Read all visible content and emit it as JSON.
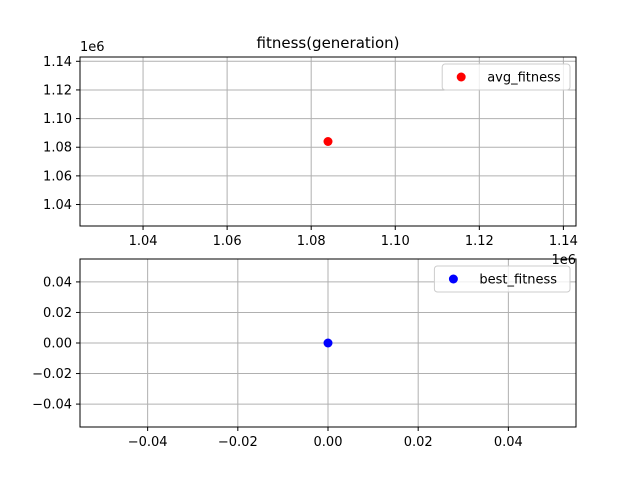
{
  "chart_data": [
    {
      "type": "scatter",
      "title": "fitness(generation)",
      "xlabel": "",
      "ylabel": "",
      "xlim": [
        1025000,
        1143000
      ],
      "ylim": [
        1025000,
        1143000
      ],
      "xticks": [
        1040000,
        1060000,
        1080000,
        1100000,
        1120000,
        1140000
      ],
      "yticks": [
        1040000,
        1060000,
        1080000,
        1100000,
        1120000,
        1140000
      ],
      "xtick_labels": [
        "1.04",
        "1.06",
        "1.08",
        "1.10",
        "1.12",
        "1.14"
      ],
      "ytick_labels": [
        "1.04",
        "1.06",
        "1.08",
        "1.10",
        "1.12",
        "1.14"
      ],
      "x_offset_label": "1e6",
      "y_offset_label": "1e6",
      "grid": true,
      "legend_position": "top-right",
      "series": [
        {
          "name": "avg_fitness",
          "color": "#ff0000",
          "points": [
            [
              1084000,
              1084000
            ]
          ]
        }
      ]
    },
    {
      "type": "scatter",
      "title": "",
      "xlabel": "",
      "ylabel": "",
      "xlim": [
        -0.055,
        0.055
      ],
      "ylim": [
        -0.055,
        0.055
      ],
      "xticks": [
        -0.04,
        -0.02,
        0.0,
        0.02,
        0.04
      ],
      "yticks": [
        -0.04,
        -0.02,
        0.0,
        0.02,
        0.04
      ],
      "xtick_labels": [
        "−0.04",
        "−0.02",
        "0.00",
        "0.02",
        "0.04"
      ],
      "ytick_labels": [
        "−0.04",
        "−0.02",
        "0.00",
        "0.02",
        "0.04"
      ],
      "grid": true,
      "legend_position": "top-right",
      "series": [
        {
          "name": "best_fitness",
          "color": "#0000ff",
          "points": [
            [
              0.0,
              0.0
            ]
          ]
        }
      ]
    }
  ]
}
